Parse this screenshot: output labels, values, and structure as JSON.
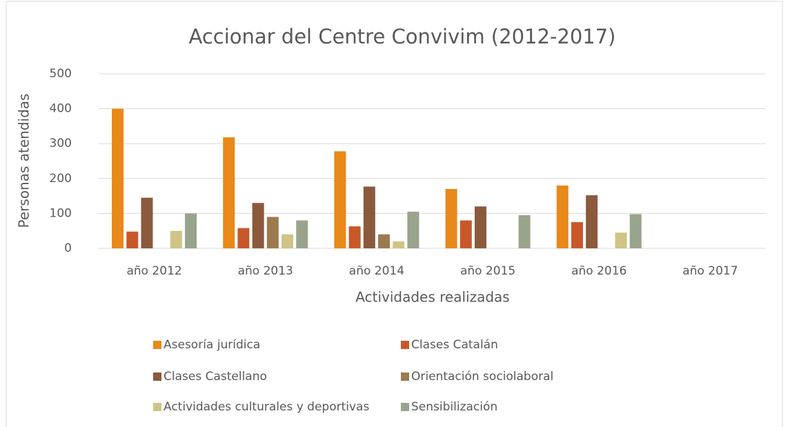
{
  "chart_data": {
    "type": "bar",
    "title": "Accionar del Centre Convivim (2012-2017)",
    "x_label": "Actividades realizadas",
    "y_label": "Personas atendidas",
    "categories": [
      "año 2012",
      "año 2013",
      "año 2014",
      "año 2015",
      "año 2016",
      "año 2017"
    ],
    "series": [
      {
        "name": "Asesoría jurídica",
        "color": "#e8891a",
        "values": [
          400,
          318,
          278,
          170,
          180,
          0
        ]
      },
      {
        "name": "Clases Catalán",
        "color": "#c8582a",
        "values": [
          48,
          58,
          63,
          80,
          75,
          0
        ]
      },
      {
        "name": "Clases Castellano",
        "color": "#8b5a3c",
        "values": [
          145,
          130,
          177,
          120,
          152,
          0
        ]
      },
      {
        "name": "Orientación sociolaboral",
        "color": "#9b7b4e",
        "values": [
          0,
          90,
          40,
          0,
          0,
          0
        ]
      },
      {
        "name": "Actividades culturales y deportivas",
        "color": "#cfc486",
        "values": [
          50,
          40,
          20,
          0,
          45,
          0
        ]
      },
      {
        "name": "Sensibilización",
        "color": "#98a48c",
        "values": [
          100,
          80,
          105,
          95,
          98,
          0
        ]
      }
    ],
    "ylim": [
      0,
      500
    ],
    "yticks": [
      0,
      100,
      200,
      300,
      400,
      500
    ],
    "grid": true,
    "legend": "bottom"
  }
}
